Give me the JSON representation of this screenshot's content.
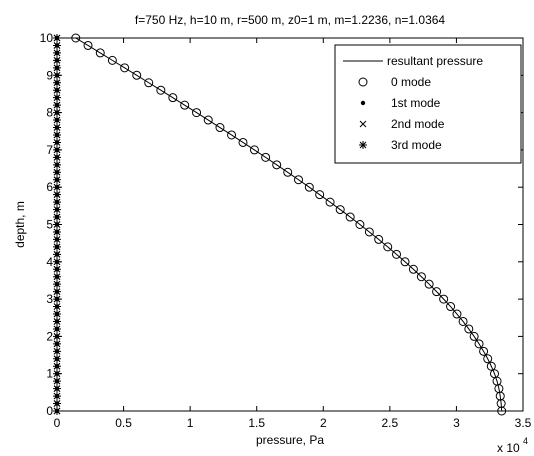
{
  "chart_data": {
    "type": "line",
    "title": "f=750 Hz, h=10 m, r=500 m, z0=1 m, m=1.2236, n=1.0364",
    "xlabel": "pressure, Pa",
    "ylabel": "depth, m",
    "xlim": [
      0,
      35000
    ],
    "ylim": [
      0,
      10
    ],
    "x_ticks": [
      0,
      5000,
      10000,
      15000,
      20000,
      25000,
      30000,
      35000
    ],
    "x_tick_labels": [
      "0",
      "0.5",
      "1",
      "1.5",
      "2",
      "2.5",
      "3",
      "3.5"
    ],
    "x_exponent_label": "x 10",
    "x_exponent_power": "4",
    "y_ticks": [
      0,
      1,
      2,
      3,
      4,
      5,
      6,
      7,
      8,
      9,
      10
    ],
    "y_tick_labels": [
      "0",
      "1",
      "2",
      "3",
      "4",
      "5",
      "6",
      "7",
      "8",
      "9",
      "10"
    ],
    "grid": false,
    "legend_position": "top-right",
    "y_sample_step": 0.2,
    "series": [
      {
        "name": "resultant pressure",
        "style": "solid-line",
        "y": [
          0,
          0.2,
          0.4,
          0.6,
          0.8,
          1,
          1.2,
          1.4,
          1.6,
          1.8,
          2,
          2.2,
          2.4,
          2.6,
          2.8,
          3,
          3.2,
          3.4,
          3.6,
          3.8,
          4,
          4.2,
          4.4,
          4.6,
          4.8,
          5,
          5.2,
          5.4,
          5.6,
          5.8,
          6,
          6.2,
          6.4,
          6.6,
          6.8,
          7,
          7.2,
          7.4,
          7.6,
          7.8,
          8,
          8.2,
          8.4,
          8.6,
          8.8,
          9,
          9.2,
          9.4,
          9.6,
          9.8,
          10
        ],
        "x": [
          33400,
          33360,
          33290,
          33190,
          33050,
          32860,
          32620,
          32350,
          32040,
          31700,
          31330,
          30930,
          30500,
          30040,
          29560,
          29040,
          28510,
          27950,
          27370,
          26770,
          26140,
          25500,
          24840,
          24160,
          23460,
          22750,
          22020,
          21270,
          20510,
          19730,
          18950,
          18140,
          17330,
          16500,
          15670,
          14830,
          13970,
          13110,
          12240,
          11360,
          10480,
          9590,
          8700,
          7800,
          6890,
          5990,
          5080,
          4160,
          3250,
          2330,
          1410
        ]
      },
      {
        "name": "0 mode",
        "style": "open-circle",
        "y": [
          0,
          0.2,
          0.4,
          0.6,
          0.8,
          1,
          1.2,
          1.4,
          1.6,
          1.8,
          2,
          2.2,
          2.4,
          2.6,
          2.8,
          3,
          3.2,
          3.4,
          3.6,
          3.8,
          4,
          4.2,
          4.4,
          4.6,
          4.8,
          5,
          5.2,
          5.4,
          5.6,
          5.8,
          6,
          6.2,
          6.4,
          6.6,
          6.8,
          7,
          7.2,
          7.4,
          7.6,
          7.8,
          8,
          8.2,
          8.4,
          8.6,
          8.8,
          9,
          9.2,
          9.4,
          9.6,
          9.8,
          10
        ],
        "x": [
          33400,
          33360,
          33290,
          33190,
          33050,
          32860,
          32620,
          32350,
          32040,
          31700,
          31330,
          30930,
          30500,
          30040,
          29560,
          29040,
          28510,
          27950,
          27370,
          26770,
          26140,
          25500,
          24840,
          24160,
          23460,
          22750,
          22020,
          21270,
          20510,
          19730,
          18950,
          18140,
          17330,
          16500,
          15670,
          14830,
          13970,
          13110,
          12240,
          11360,
          10480,
          9590,
          8700,
          7800,
          6890,
          5990,
          5080,
          4160,
          3250,
          2330,
          1410
        ]
      },
      {
        "name": "1st mode",
        "style": "dot",
        "x_constant": 0
      },
      {
        "name": "2nd mode",
        "style": "x-mark",
        "x_constant": 0
      },
      {
        "name": "3rd mode",
        "style": "asterisk",
        "x_constant": 0
      }
    ]
  }
}
